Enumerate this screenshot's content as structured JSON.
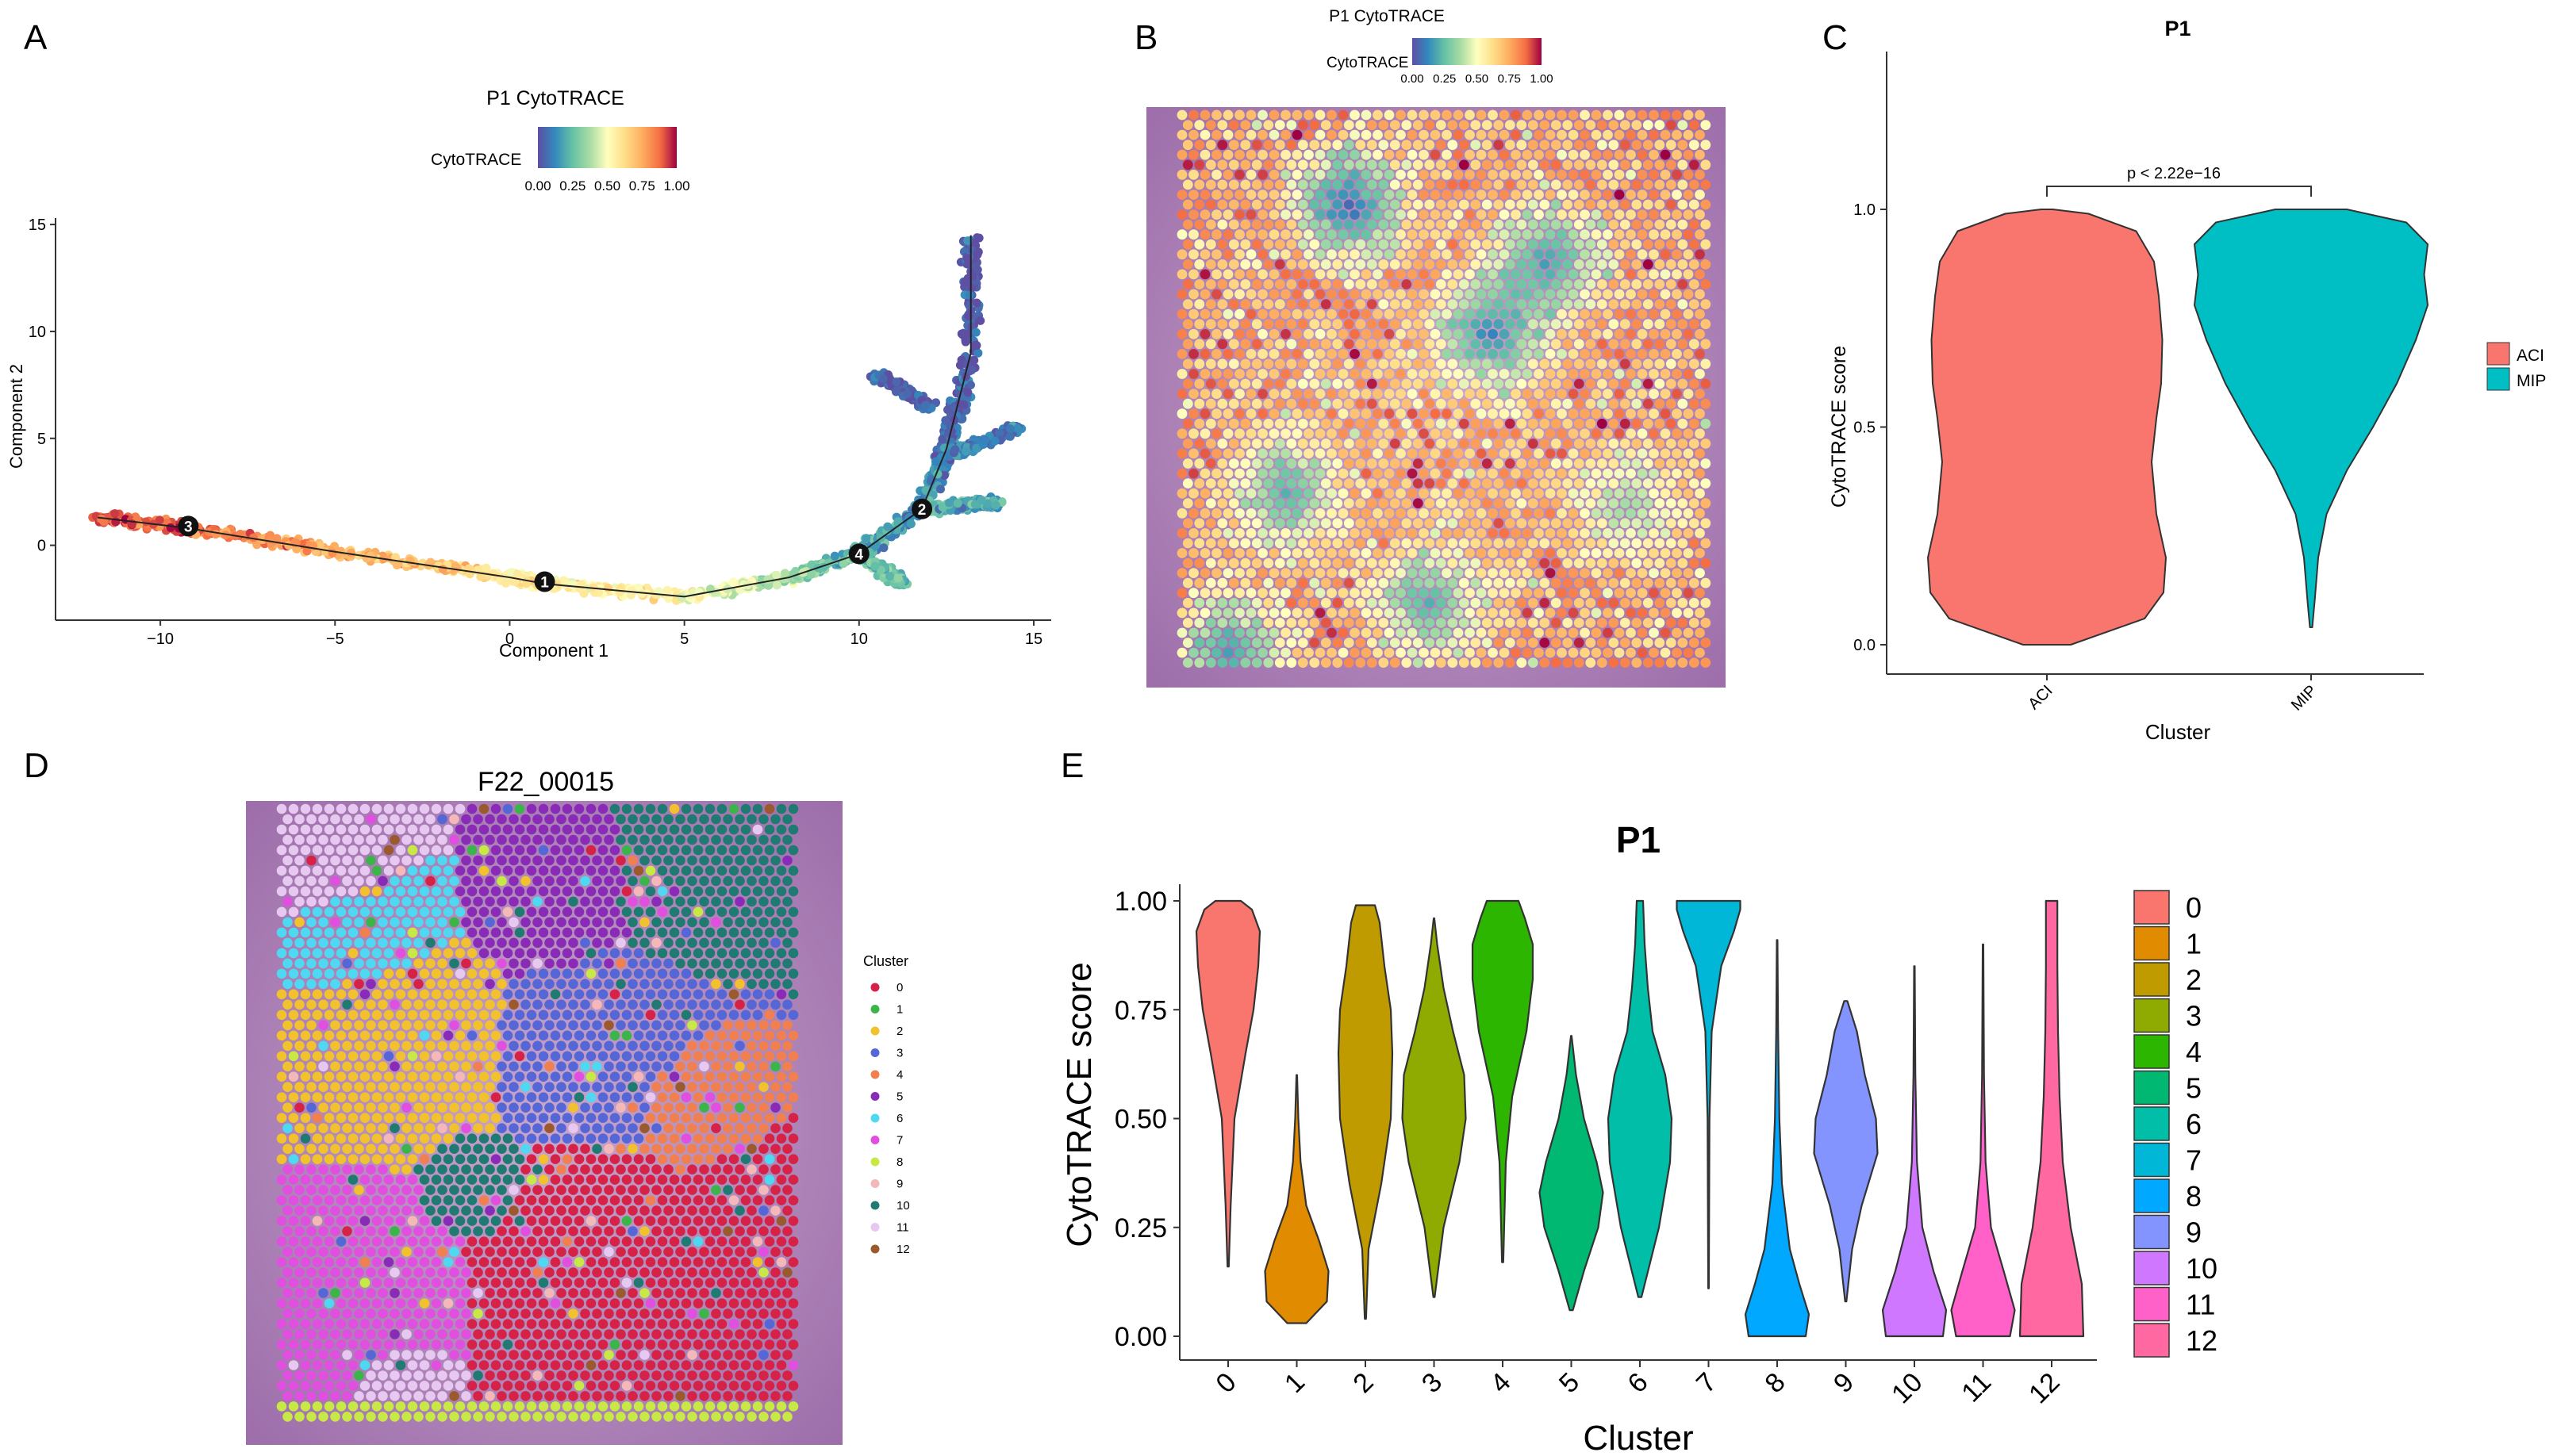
{
  "panels": {
    "A": {
      "label": "A",
      "title": "P1 CytoTRACE",
      "legend_title": "CytoTRACE",
      "legend_ticks": [
        "0.00",
        "0.25",
        "0.50",
        "0.75",
        "1.00"
      ],
      "xlabel": "Component 1",
      "ylabel": "Component 2",
      "x_ticks": [
        -10,
        -5,
        0,
        5,
        10,
        15
      ],
      "y_ticks": [
        0,
        5,
        10,
        15
      ],
      "xlim": [
        -13,
        15.5
      ],
      "ylim": [
        -3.5,
        15.3
      ],
      "branch_points": [
        {
          "label": "1",
          "x": 1.0,
          "y": -1.7
        },
        {
          "label": "2",
          "x": 11.8,
          "y": 1.7
        },
        {
          "label": "3",
          "x": -9.2,
          "y": 0.9
        },
        {
          "label": "4",
          "x": 10.0,
          "y": -0.4
        }
      ]
    },
    "B": {
      "label": "B",
      "title": "P1 CytoTRACE",
      "legend_title": "CytoTRACE",
      "legend_ticks": [
        "0.00",
        "0.25",
        "0.50",
        "0.75",
        "1.00"
      ]
    },
    "C": {
      "label": "C",
      "chart_title": "P1",
      "xlabel": "Cluster",
      "ylabel": "CytoTRACE score",
      "y_ticks": [
        "0.0",
        "0.5",
        "1.0"
      ],
      "annotation": "p < 2.22e−16",
      "legend": [
        {
          "name": "ACI",
          "color": "#F8766D"
        },
        {
          "name": "MIP",
          "color": "#00BFC4"
        }
      ]
    },
    "D": {
      "label": "D",
      "title": "F22_00015",
      "legend_title": "Cluster",
      "clusters": [
        {
          "name": "0",
          "color": "#D62246"
        },
        {
          "name": "1",
          "color": "#3BB54A"
        },
        {
          "name": "2",
          "color": "#F2C12E"
        },
        {
          "name": "3",
          "color": "#5566D6"
        },
        {
          "name": "4",
          "color": "#F08050"
        },
        {
          "name": "5",
          "color": "#8A2BB8"
        },
        {
          "name": "6",
          "color": "#4FD8F2"
        },
        {
          "name": "7",
          "color": "#E04FE0"
        },
        {
          "name": "8",
          "color": "#C8E846"
        },
        {
          "name": "9",
          "color": "#F4B8B8"
        },
        {
          "name": "10",
          "color": "#1F7A72"
        },
        {
          "name": "11",
          "color": "#E6C8F0"
        },
        {
          "name": "12",
          "color": "#9A5A2E"
        }
      ]
    },
    "E": {
      "label": "E",
      "chart_title": "P1",
      "xlabel": "Cluster",
      "ylabel": "CytoTRACE score",
      "y_ticks": [
        "0.00",
        "0.25",
        "0.50",
        "0.75",
        "1.00"
      ]
    }
  },
  "chart_data": [
    {
      "panel": "A",
      "type": "scatter",
      "title": "P1 CytoTRACE",
      "xlabel": "Component 1",
      "ylabel": "Component 2",
      "xlim": [
        -13,
        15.5
      ],
      "ylim": [
        -3.5,
        15.3
      ],
      "trajectory": [
        {
          "x": -11.8,
          "y": 1.3,
          "score": 0.92
        },
        {
          "x": -9.2,
          "y": 0.8,
          "score": 0.88
        },
        {
          "x": -5.0,
          "y": -0.3,
          "score": 0.75
        },
        {
          "x": 0.0,
          "y": -1.5,
          "score": 0.6
        },
        {
          "x": 1.0,
          "y": -1.8,
          "score": 0.55
        },
        {
          "x": 5.0,
          "y": -2.4,
          "score": 0.55
        },
        {
          "x": 8.0,
          "y": -1.5,
          "score": 0.35
        },
        {
          "x": 10.0,
          "y": -0.4,
          "score": 0.2
        },
        {
          "x": 11.8,
          "y": 1.7,
          "score": 0.15
        },
        {
          "x": 12.5,
          "y": 4.5,
          "score": 0.1
        },
        {
          "x": 13.2,
          "y": 9.0,
          "score": 0.03
        },
        {
          "x": 13.2,
          "y": 14.5,
          "score": 0.0
        }
      ],
      "side_branches": [
        {
          "points": [
            {
              "x": 11.8,
              "y": 1.7
            },
            {
              "x": 14.0,
              "y": 2.0
            }
          ],
          "score": 0.2
        },
        {
          "points": [
            {
              "x": 10.0,
              "y": -0.4
            },
            {
              "x": 11.3,
              "y": -1.8
            }
          ],
          "score": 0.25
        },
        {
          "points": [
            {
              "x": 12.3,
              "y": 4.0
            },
            {
              "x": 14.5,
              "y": 5.5
            }
          ],
          "score": 0.1
        },
        {
          "points": [
            {
              "x": 12.0,
              "y": 6.5
            },
            {
              "x": 10.5,
              "y": 8.0
            }
          ],
          "score": 0.05
        }
      ]
    },
    {
      "panel": "C",
      "type": "violin",
      "title": "P1",
      "xlabel": "Cluster",
      "ylabel": "CytoTRACE score",
      "ylim": [
        0,
        1
      ],
      "categories": [
        "ACI",
        "MIP"
      ],
      "series": [
        {
          "name": "ACI",
          "color": "#F8766D",
          "min": 0.0,
          "max": 1.0,
          "density": [
            [
              0.0,
              0.2
            ],
            [
              0.06,
              0.82
            ],
            [
              0.12,
              0.98
            ],
            [
              0.2,
              1.0
            ],
            [
              0.3,
              0.92
            ],
            [
              0.42,
              0.88
            ],
            [
              0.52,
              0.92
            ],
            [
              0.6,
              0.96
            ],
            [
              0.7,
              0.97
            ],
            [
              0.8,
              0.94
            ],
            [
              0.88,
              0.9
            ],
            [
              0.95,
              0.75
            ],
            [
              0.99,
              0.35
            ],
            [
              1.0,
              0.05
            ]
          ]
        },
        {
          "name": "MIP",
          "color": "#00BFC4",
          "min": 0.04,
          "max": 1.0,
          "density": [
            [
              0.04,
              0.01
            ],
            [
              0.1,
              0.03
            ],
            [
              0.2,
              0.06
            ],
            [
              0.3,
              0.13
            ],
            [
              0.4,
              0.3
            ],
            [
              0.5,
              0.52
            ],
            [
              0.6,
              0.72
            ],
            [
              0.7,
              0.88
            ],
            [
              0.78,
              0.98
            ],
            [
              0.85,
              0.95
            ],
            [
              0.92,
              0.98
            ],
            [
              0.97,
              0.8
            ],
            [
              1.0,
              0.3
            ]
          ]
        }
      ]
    },
    {
      "panel": "E",
      "type": "violin",
      "title": "P1",
      "xlabel": "Cluster",
      "ylabel": "CytoTRACE score",
      "ylim": [
        0,
        1
      ],
      "categories": [
        "0",
        "1",
        "2",
        "3",
        "4",
        "5",
        "6",
        "7",
        "8",
        "9",
        "10",
        "11",
        "12"
      ],
      "series": [
        {
          "name": "0",
          "color": "#F8766D",
          "min": 0.16,
          "max": 1.0,
          "density": [
            [
              0.16,
              0.02
            ],
            [
              0.3,
              0.08
            ],
            [
              0.5,
              0.2
            ],
            [
              0.65,
              0.55
            ],
            [
              0.75,
              0.8
            ],
            [
              0.85,
              0.95
            ],
            [
              0.93,
              1.0
            ],
            [
              0.98,
              0.75
            ],
            [
              1.0,
              0.4
            ]
          ]
        },
        {
          "name": "1",
          "color": "#E08B00",
          "min": 0.03,
          "max": 0.6,
          "density": [
            [
              0.03,
              0.3
            ],
            [
              0.08,
              0.95
            ],
            [
              0.15,
              1.0
            ],
            [
              0.22,
              0.7
            ],
            [
              0.3,
              0.3
            ],
            [
              0.4,
              0.12
            ],
            [
              0.5,
              0.05
            ],
            [
              0.6,
              0.01
            ]
          ]
        },
        {
          "name": "2",
          "color": "#C09B00",
          "min": 0.04,
          "max": 0.99,
          "density": [
            [
              0.04,
              0.02
            ],
            [
              0.2,
              0.1
            ],
            [
              0.35,
              0.5
            ],
            [
              0.5,
              0.8
            ],
            [
              0.65,
              0.85
            ],
            [
              0.75,
              0.8
            ],
            [
              0.85,
              0.6
            ],
            [
              0.95,
              0.45
            ],
            [
              0.99,
              0.3
            ]
          ]
        },
        {
          "name": "3",
          "color": "#8FAA00",
          "min": 0.09,
          "max": 0.96,
          "density": [
            [
              0.09,
              0.02
            ],
            [
              0.25,
              0.3
            ],
            [
              0.4,
              0.8
            ],
            [
              0.5,
              1.0
            ],
            [
              0.6,
              0.95
            ],
            [
              0.7,
              0.6
            ],
            [
              0.8,
              0.3
            ],
            [
              0.9,
              0.1
            ],
            [
              0.96,
              0.01
            ]
          ]
        },
        {
          "name": "4",
          "color": "#2DB600",
          "min": 0.17,
          "max": 1.0,
          "density": [
            [
              0.17,
              0.02
            ],
            [
              0.4,
              0.1
            ],
            [
              0.55,
              0.3
            ],
            [
              0.7,
              0.75
            ],
            [
              0.82,
              0.95
            ],
            [
              0.9,
              0.95
            ],
            [
              0.96,
              0.7
            ],
            [
              1.0,
              0.5
            ]
          ]
        },
        {
          "name": "5",
          "color": "#00B872",
          "min": 0.06,
          "max": 0.69,
          "density": [
            [
              0.06,
              0.05
            ],
            [
              0.15,
              0.4
            ],
            [
              0.25,
              0.85
            ],
            [
              0.33,
              1.0
            ],
            [
              0.4,
              0.8
            ],
            [
              0.5,
              0.4
            ],
            [
              0.6,
              0.15
            ],
            [
              0.69,
              0.01
            ]
          ]
        },
        {
          "name": "6",
          "color": "#00BEA8",
          "min": 0.09,
          "max": 1.0,
          "density": [
            [
              0.09,
              0.05
            ],
            [
              0.25,
              0.6
            ],
            [
              0.4,
              0.95
            ],
            [
              0.5,
              1.0
            ],
            [
              0.6,
              0.8
            ],
            [
              0.7,
              0.4
            ],
            [
              0.8,
              0.25
            ],
            [
              0.9,
              0.15
            ],
            [
              1.0,
              0.1
            ]
          ]
        },
        {
          "name": "7",
          "color": "#00B7D8",
          "min": 0.11,
          "max": 1.0,
          "density": [
            [
              0.11,
              0.01
            ],
            [
              0.5,
              0.03
            ],
            [
              0.7,
              0.1
            ],
            [
              0.85,
              0.4
            ],
            [
              0.93,
              0.8
            ],
            [
              0.98,
              1.0
            ],
            [
              1.0,
              1.0
            ]
          ]
        },
        {
          "name": "8",
          "color": "#00A9FF",
          "min": 0.0,
          "max": 0.91,
          "density": [
            [
              0.0,
              0.9
            ],
            [
              0.05,
              1.0
            ],
            [
              0.12,
              0.7
            ],
            [
              0.2,
              0.4
            ],
            [
              0.35,
              0.15
            ],
            [
              0.5,
              0.07
            ],
            [
              0.7,
              0.03
            ],
            [
              0.91,
              0.01
            ]
          ]
        },
        {
          "name": "9",
          "color": "#8494FF",
          "min": 0.08,
          "max": 0.77,
          "density": [
            [
              0.08,
              0.02
            ],
            [
              0.2,
              0.2
            ],
            [
              0.3,
              0.5
            ],
            [
              0.42,
              1.0
            ],
            [
              0.5,
              0.95
            ],
            [
              0.6,
              0.6
            ],
            [
              0.7,
              0.35
            ],
            [
              0.77,
              0.05
            ]
          ]
        },
        {
          "name": "10",
          "color": "#CF78FF",
          "min": 0.0,
          "max": 0.85,
          "density": [
            [
              0.0,
              0.9
            ],
            [
              0.06,
              1.0
            ],
            [
              0.15,
              0.6
            ],
            [
              0.25,
              0.25
            ],
            [
              0.4,
              0.08
            ],
            [
              0.6,
              0.03
            ],
            [
              0.85,
              0.01
            ]
          ]
        },
        {
          "name": "11",
          "color": "#FF61C9",
          "min": 0.0,
          "max": 0.9,
          "density": [
            [
              0.0,
              0.85
            ],
            [
              0.06,
              1.0
            ],
            [
              0.15,
              0.65
            ],
            [
              0.25,
              0.25
            ],
            [
              0.4,
              0.08
            ],
            [
              0.6,
              0.03
            ],
            [
              0.9,
              0.01
            ]
          ]
        },
        {
          "name": "12",
          "color": "#FF68A1",
          "min": 0.0,
          "max": 1.0,
          "density": [
            [
              0.0,
              1.0
            ],
            [
              0.12,
              0.95
            ],
            [
              0.25,
              0.6
            ],
            [
              0.4,
              0.35
            ],
            [
              0.55,
              0.25
            ],
            [
              0.7,
              0.2
            ],
            [
              0.85,
              0.18
            ],
            [
              1.0,
              0.18
            ]
          ]
        }
      ]
    }
  ]
}
